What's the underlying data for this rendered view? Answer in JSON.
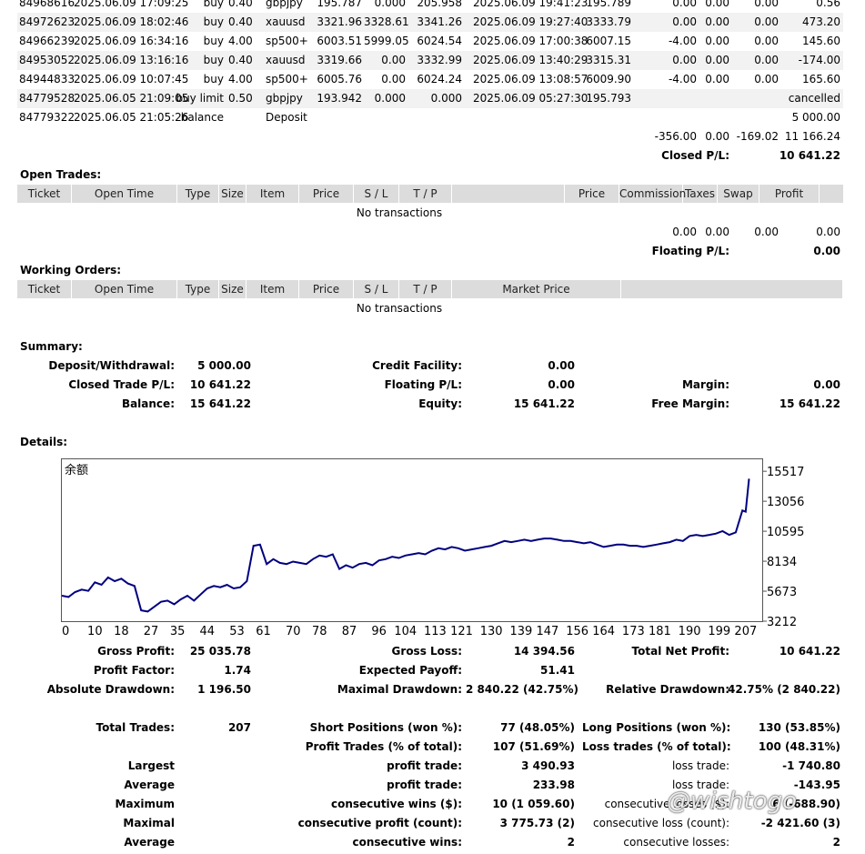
{
  "closed_trades": {
    "rows": [
      {
        "ticket": "84968616",
        "open_time": "2025.06.09 17:09:25",
        "type": "buy",
        "size": "0.40",
        "item": "gbpjpy",
        "price": "195.787",
        "sl": "0.000",
        "tp": "205.958",
        "close_time": "2025.06.09 19:41:23",
        "close_price": "195.789",
        "commission": "0.00",
        "taxes": "0.00",
        "swap": "0.00",
        "profit": "0.56"
      },
      {
        "ticket": "84972623",
        "open_time": "2025.06.09 18:02:46",
        "type": "buy",
        "size": "0.40",
        "item": "xauusd",
        "price": "3321.96",
        "sl": "3328.61",
        "tp": "3341.26",
        "close_time": "2025.06.09 19:27:40",
        "close_price": "3333.79",
        "commission": "0.00",
        "taxes": "0.00",
        "swap": "0.00",
        "profit": "473.20"
      },
      {
        "ticket": "84966239",
        "open_time": "2025.06.09 16:34:16",
        "type": "buy",
        "size": "4.00",
        "item": "sp500+",
        "price": "6003.51",
        "sl": "5999.05",
        "tp": "6024.54",
        "close_time": "2025.06.09 17:00:38",
        "close_price": "6007.15",
        "commission": "-4.00",
        "taxes": "0.00",
        "swap": "0.00",
        "profit": "145.60"
      },
      {
        "ticket": "84953052",
        "open_time": "2025.06.09 13:16:16",
        "type": "buy",
        "size": "0.40",
        "item": "xauusd",
        "price": "3319.66",
        "sl": "0.00",
        "tp": "3332.99",
        "close_time": "2025.06.09 13:40:29",
        "close_price": "3315.31",
        "commission": "0.00",
        "taxes": "0.00",
        "swap": "0.00",
        "profit": "-174.00"
      },
      {
        "ticket": "84944833",
        "open_time": "2025.06.09 10:07:45",
        "type": "buy",
        "size": "4.00",
        "item": "sp500+",
        "price": "6005.76",
        "sl": "0.00",
        "tp": "6024.24",
        "close_time": "2025.06.09 13:08:57",
        "close_price": "6009.90",
        "commission": "-4.00",
        "taxes": "0.00",
        "swap": "0.00",
        "profit": "165.60"
      },
      {
        "ticket": "84779528",
        "open_time": "2025.06.05 21:09:05",
        "type": "buy limit",
        "size": "0.50",
        "item": "gbpjpy",
        "price": "193.942",
        "sl": "0.000",
        "tp": "0.000",
        "close_time": "2025.06.09 05:27:30",
        "close_price": "195.793",
        "commission": "",
        "taxes": "",
        "swap": "",
        "profit": "cancelled"
      },
      {
        "ticket": "84779322",
        "open_time": "2025.06.05 21:05:26",
        "type": "balance",
        "size": "",
        "item": "Deposit",
        "price": "",
        "sl": "",
        "tp": "",
        "close_time": "",
        "close_price": "",
        "commission": "",
        "taxes": "",
        "swap": "",
        "profit": "5 000.00"
      }
    ],
    "totals": {
      "commission": "-356.00",
      "taxes": "0.00",
      "swap": "-169.02",
      "profit": "11 166.24"
    },
    "closed_pl_label": "Closed P/L:",
    "closed_pl_value": "10 641.22"
  },
  "open_trades": {
    "title": "Open Trades:",
    "headers": [
      "Ticket",
      "Open Time",
      "Type",
      "Size",
      "Item",
      "Price",
      "S / L",
      "T / P",
      "",
      "Price",
      "Commission",
      "Taxes",
      "Swap",
      "Profit"
    ],
    "empty": "No transactions",
    "totals": {
      "commission": "0.00",
      "taxes": "0.00",
      "swap": "0.00",
      "profit": "0.00"
    },
    "floating_label": "Floating P/L:",
    "floating_value": "0.00"
  },
  "working_orders": {
    "title": "Working Orders:",
    "headers": [
      "Ticket",
      "Open Time",
      "Type",
      "Size",
      "Item",
      "Price",
      "S / L",
      "T / P",
      "Market Price",
      ""
    ],
    "empty": "No transactions"
  },
  "summary": {
    "title": "Summary:",
    "deposit_label": "Deposit/Withdrawal:",
    "deposit_value": "5 000.00",
    "credit_label": "Credit Facility:",
    "credit_value": "0.00",
    "closed_label": "Closed Trade P/L:",
    "closed_value": "10 641.22",
    "floating_label": "Floating P/L:",
    "floating_value": "0.00",
    "margin_label": "Margin:",
    "margin_value": "0.00",
    "balance_label": "Balance:",
    "balance_value": "15 641.22",
    "equity_label": "Equity:",
    "equity_value": "15 641.22",
    "free_margin_label": "Free Margin:",
    "free_margin_value": "15 641.22"
  },
  "details": {
    "title": "Details:",
    "stats": [
      {
        "l1": "Gross Profit:",
        "v1": "25 035.78",
        "l2": "Gross Loss:",
        "v2": "14 394.56",
        "l3": "Total Net Profit:",
        "v3": "10 641.22"
      },
      {
        "l1": "Profit Factor:",
        "v1": "1.74",
        "l2": "Expected Payoff:",
        "v2": "51.41",
        "l3": "",
        "v3": ""
      },
      {
        "l1": "Absolute Drawdown:",
        "v1": "1 196.50",
        "l2": "Maximal Drawdown:",
        "v2": "2 840.22 (42.75%)",
        "l3": "Relative Drawdown:",
        "v3": "42.75% (2 840.22)"
      }
    ],
    "stats2": [
      {
        "l1": "Total Trades:",
        "v1": "207",
        "l2": "Short Positions (won %):",
        "v2": "77 (48.05%)",
        "l3": "Long Positions (won %):",
        "v3": "130 (53.85%)"
      },
      {
        "l1": "",
        "v1": "",
        "l2": "Profit Trades (% of total):",
        "v2": "107 (51.69%)",
        "l3": "Loss trades (% of total):",
        "v3": "100 (48.31%)"
      },
      {
        "l1": "Largest",
        "v1": "",
        "l2": "profit trade:",
        "v2": "3 490.93",
        "l3": "loss trade:",
        "v3": "-1 740.80"
      },
      {
        "l1": "Average",
        "v1": "",
        "l2": "profit trade:",
        "v2": "233.98",
        "l3": "loss trade:",
        "v3": "-143.95"
      },
      {
        "l1": "Maximum",
        "v1": "",
        "l2": "consecutive wins ($):",
        "v2": "10 (1 059.60)",
        "l3": "consecutive losses ($):",
        "v3": "6 (-688.90)"
      },
      {
        "l1": "Maximal",
        "v1": "",
        "l2": "consecutive profit (count):",
        "v2": "3 775.73 (2)",
        "l3": "consecutive loss (count):",
        "v3": "-2 421.60 (3)"
      },
      {
        "l1": "Average",
        "v1": "",
        "l2": "consecutive wins:",
        "v2": "2",
        "l3": "consecutive losses:",
        "v3": "2"
      }
    ]
  },
  "watermark": "@wishtogo",
  "chart_data": {
    "type": "line",
    "title": "余额",
    "xlabel": "",
    "ylabel": "",
    "x_ticks": [
      0,
      10,
      18,
      27,
      35,
      44,
      53,
      61,
      70,
      78,
      87,
      96,
      104,
      113,
      121,
      130,
      139,
      147,
      156,
      164,
      173,
      181,
      190,
      199,
      207
    ],
    "y_ticks": [
      3212,
      5673,
      8134,
      10595,
      13056,
      15517
    ],
    "xlim": [
      0,
      212
    ],
    "ylim": [
      3212,
      16500
    ],
    "line_color": "#000080",
    "series": [
      {
        "name": "",
        "x": [
          0,
          2,
          4,
          6,
          8,
          10,
          12,
          14,
          16,
          18,
          20,
          22,
          24,
          26,
          28,
          30,
          32,
          34,
          36,
          38,
          40,
          42,
          44,
          46,
          48,
          50,
          52,
          54,
          56,
          58,
          60,
          62,
          64,
          66,
          68,
          70,
          72,
          74,
          76,
          78,
          80,
          82,
          84,
          86,
          88,
          90,
          92,
          94,
          96,
          98,
          100,
          102,
          104,
          106,
          108,
          110,
          112,
          114,
          116,
          118,
          120,
          122,
          124,
          126,
          128,
          130,
          132,
          134,
          136,
          138,
          140,
          142,
          144,
          146,
          148,
          150,
          152,
          154,
          156,
          158,
          160,
          162,
          164,
          166,
          168,
          170,
          172,
          174,
          176,
          178,
          180,
          182,
          184,
          186,
          188,
          190,
          192,
          194,
          196,
          198,
          200,
          202,
          204,
          206,
          207,
          208
        ],
        "values": [
          5300,
          5200,
          5600,
          5800,
          5700,
          6400,
          6200,
          6800,
          6500,
          6700,
          6300,
          6100,
          4100,
          4000,
          4400,
          4800,
          4900,
          4600,
          5000,
          5300,
          4900,
          5400,
          5900,
          6100,
          6000,
          6200,
          5900,
          6000,
          6500,
          9400,
          9500,
          7900,
          8300,
          8000,
          7900,
          8100,
          8000,
          7900,
          8300,
          8600,
          8500,
          8700,
          7500,
          7800,
          7600,
          7900,
          8000,
          7800,
          8200,
          8300,
          8500,
          8400,
          8600,
          8700,
          8800,
          8700,
          9000,
          9200,
          9100,
          9300,
          9200,
          9000,
          9100,
          9200,
          9300,
          9400,
          9600,
          9800,
          9700,
          9800,
          9900,
          9800,
          9900,
          10000,
          10000,
          9900,
          9800,
          9800,
          9700,
          9600,
          9700,
          9500,
          9300,
          9400,
          9500,
          9500,
          9400,
          9400,
          9300,
          9400,
          9500,
          9600,
          9700,
          9900,
          9800,
          10200,
          10300,
          10200,
          10300,
          10400,
          10600,
          10300,
          10500,
          12300,
          12200,
          14900
        ]
      }
    ]
  }
}
